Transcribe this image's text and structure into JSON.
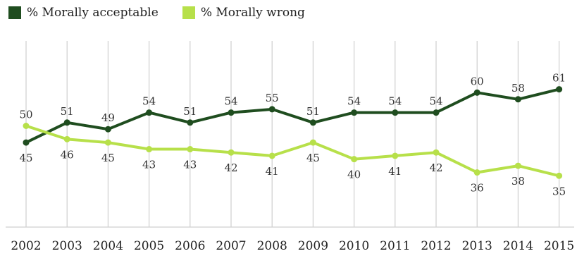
{
  "chart_data": {
    "type": "line",
    "title": "",
    "xlabel": "",
    "ylabel": "",
    "x": [
      "2002",
      "2003",
      "2004",
      "2005",
      "2006",
      "2007",
      "2008",
      "2009",
      "2010",
      "2011",
      "2012",
      "2013",
      "2014",
      "2015"
    ],
    "ylim": [
      20,
      80
    ],
    "grid": "vertical",
    "legend": "top-left",
    "series": [
      {
        "name": "% Morally acceptable",
        "color": "#1f4d1f",
        "values": [
          45,
          51,
          49,
          54,
          51,
          54,
          55,
          51,
          54,
          54,
          54,
          60,
          58,
          61
        ]
      },
      {
        "name": "% Morally wrong",
        "color": "#b7e04a",
        "values": [
          50,
          46,
          45,
          43,
          43,
          42,
          41,
          45,
          40,
          41,
          42,
          36,
          38,
          35
        ]
      }
    ]
  }
}
